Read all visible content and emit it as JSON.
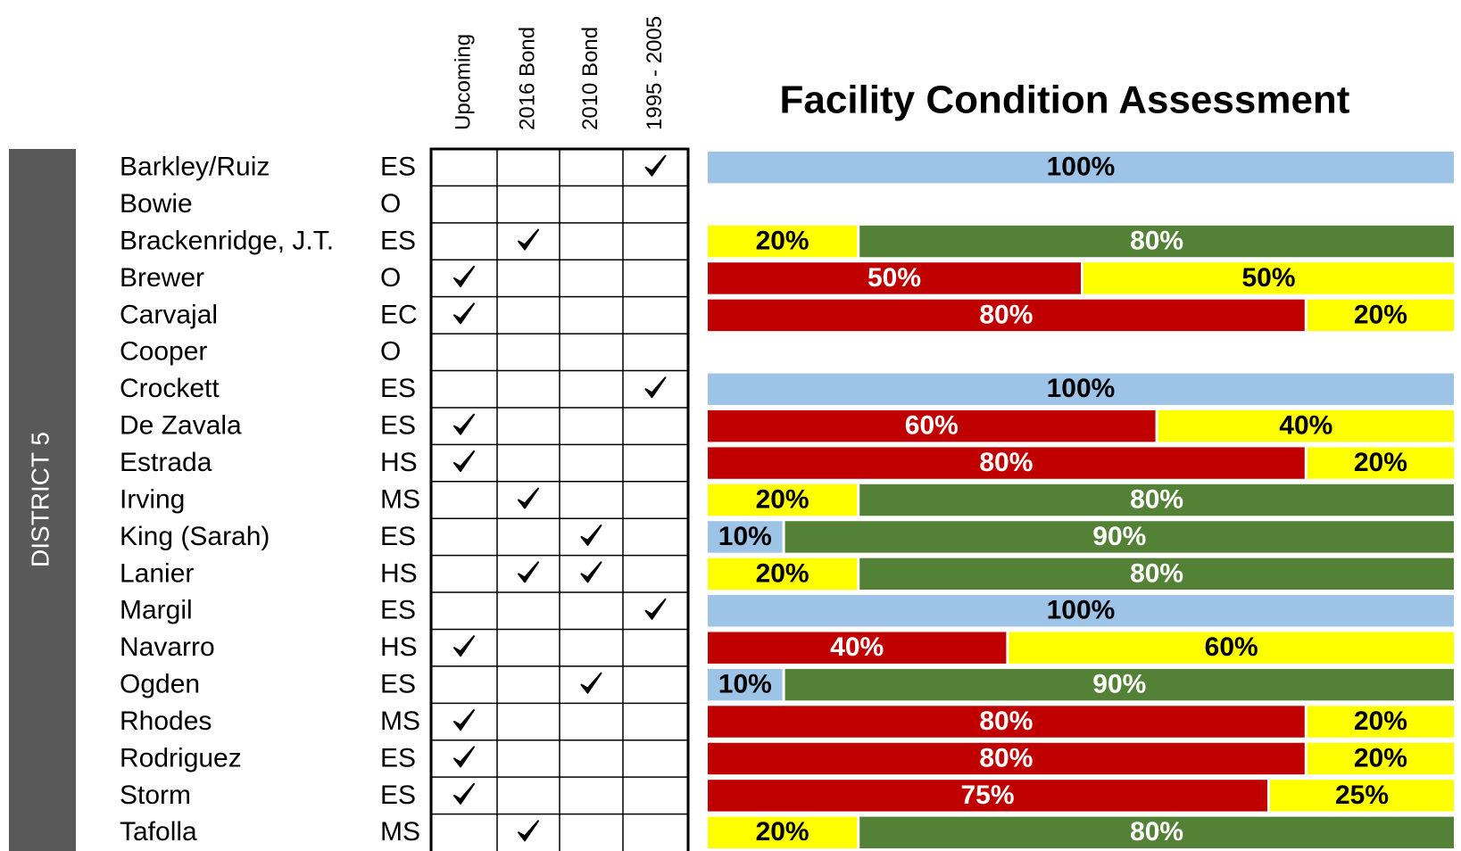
{
  "title": "Facility Condition Assessment",
  "district": "DISTRICT 5",
  "columns": [
    "Upcoming",
    "2016 Bond",
    "2010 Bond",
    "1995 - 2005"
  ],
  "xlim": [
    0,
    100
  ],
  "rows": [
    {
      "name": "Barkley/Ruiz",
      "type": "ES",
      "checks": [
        false,
        false,
        false,
        true
      ],
      "segments": [
        {
          "value": 100,
          "label": "100%",
          "color": "#9dc3e6",
          "label_color": "#000000"
        }
      ]
    },
    {
      "name": "Bowie",
      "type": "O",
      "checks": [
        false,
        false,
        false,
        false
      ],
      "segments": []
    },
    {
      "name": "Brackenridge, J.T.",
      "type": "ES",
      "checks": [
        false,
        true,
        false,
        false
      ],
      "segments": [
        {
          "value": 20,
          "label": "20%",
          "color": "#ffff00",
          "label_color": "#000000"
        },
        {
          "value": 80,
          "label": "80%",
          "color": "#538135",
          "label_color": "#ffffff"
        }
      ]
    },
    {
      "name": "Brewer",
      "type": "O",
      "checks": [
        true,
        false,
        false,
        false
      ],
      "segments": [
        {
          "value": 50,
          "label": "50%",
          "color": "#c00000",
          "label_color": "#ffffff"
        },
        {
          "value": 50,
          "label": "50%",
          "color": "#ffff00",
          "label_color": "#000000"
        }
      ]
    },
    {
      "name": "Carvajal",
      "type": "EC",
      "checks": [
        true,
        false,
        false,
        false
      ],
      "segments": [
        {
          "value": 80,
          "label": "80%",
          "color": "#c00000",
          "label_color": "#ffffff"
        },
        {
          "value": 20,
          "label": "20%",
          "color": "#ffff00",
          "label_color": "#000000"
        }
      ]
    },
    {
      "name": "Cooper",
      "type": "O",
      "checks": [
        false,
        false,
        false,
        false
      ],
      "segments": []
    },
    {
      "name": "Crockett",
      "type": "ES",
      "checks": [
        false,
        false,
        false,
        true
      ],
      "segments": [
        {
          "value": 100,
          "label": "100%",
          "color": "#9dc3e6",
          "label_color": "#000000"
        }
      ]
    },
    {
      "name": "De Zavala",
      "type": "ES",
      "checks": [
        true,
        false,
        false,
        false
      ],
      "segments": [
        {
          "value": 60,
          "label": "60%",
          "color": "#c00000",
          "label_color": "#ffffff"
        },
        {
          "value": 40,
          "label": "40%",
          "color": "#ffff00",
          "label_color": "#000000"
        }
      ]
    },
    {
      "name": "Estrada",
      "type": "HS",
      "checks": [
        true,
        false,
        false,
        false
      ],
      "segments": [
        {
          "value": 80,
          "label": "80%",
          "color": "#c00000",
          "label_color": "#ffffff"
        },
        {
          "value": 20,
          "label": "20%",
          "color": "#ffff00",
          "label_color": "#000000"
        }
      ]
    },
    {
      "name": "Irving",
      "type": "MS",
      "checks": [
        false,
        true,
        false,
        false
      ],
      "segments": [
        {
          "value": 20,
          "label": "20%",
          "color": "#ffff00",
          "label_color": "#000000"
        },
        {
          "value": 80,
          "label": "80%",
          "color": "#538135",
          "label_color": "#ffffff"
        }
      ]
    },
    {
      "name": "King (Sarah)",
      "type": "ES",
      "checks": [
        false,
        false,
        true,
        false
      ],
      "segments": [
        {
          "value": 10,
          "label": "10%",
          "color": "#9dc3e6",
          "label_color": "#000000"
        },
        {
          "value": 90,
          "label": "90%",
          "color": "#538135",
          "label_color": "#ffffff"
        }
      ]
    },
    {
      "name": "Lanier",
      "type": "HS",
      "checks": [
        false,
        true,
        true,
        false
      ],
      "segments": [
        {
          "value": 20,
          "label": "20%",
          "color": "#ffff00",
          "label_color": "#000000"
        },
        {
          "value": 80,
          "label": "80%",
          "color": "#538135",
          "label_color": "#ffffff"
        }
      ]
    },
    {
      "name": "Margil",
      "type": "ES",
      "checks": [
        false,
        false,
        false,
        true
      ],
      "segments": [
        {
          "value": 100,
          "label": "100%",
          "color": "#9dc3e6",
          "label_color": "#000000"
        }
      ]
    },
    {
      "name": "Navarro",
      "type": "HS",
      "checks": [
        true,
        false,
        false,
        false
      ],
      "segments": [
        {
          "value": 40,
          "label": "40%",
          "color": "#c00000",
          "label_color": "#ffffff"
        },
        {
          "value": 60,
          "label": "60%",
          "color": "#ffff00",
          "label_color": "#000000"
        }
      ]
    },
    {
      "name": "Ogden",
      "type": "ES",
      "checks": [
        false,
        false,
        true,
        false
      ],
      "segments": [
        {
          "value": 10,
          "label": "10%",
          "color": "#9dc3e6",
          "label_color": "#000000"
        },
        {
          "value": 90,
          "label": "90%",
          "color": "#538135",
          "label_color": "#ffffff"
        }
      ]
    },
    {
      "name": "Rhodes",
      "type": "MS",
      "checks": [
        true,
        false,
        false,
        false
      ],
      "segments": [
        {
          "value": 80,
          "label": "80%",
          "color": "#c00000",
          "label_color": "#ffffff"
        },
        {
          "value": 20,
          "label": "20%",
          "color": "#ffff00",
          "label_color": "#000000"
        }
      ]
    },
    {
      "name": "Rodriguez",
      "type": "ES",
      "checks": [
        true,
        false,
        false,
        false
      ],
      "segments": [
        {
          "value": 80,
          "label": "80%",
          "color": "#c00000",
          "label_color": "#ffffff"
        },
        {
          "value": 20,
          "label": "20%",
          "color": "#ffff00",
          "label_color": "#000000"
        }
      ]
    },
    {
      "name": "Storm",
      "type": "ES",
      "checks": [
        true,
        false,
        false,
        false
      ],
      "segments": [
        {
          "value": 75,
          "label": "75%",
          "color": "#c00000",
          "label_color": "#ffffff"
        },
        {
          "value": 25,
          "label": "25%",
          "color": "#ffff00",
          "label_color": "#000000"
        }
      ]
    },
    {
      "name": "Tafolla",
      "type": "MS",
      "checks": [
        false,
        true,
        false,
        false
      ],
      "segments": [
        {
          "value": 20,
          "label": "20%",
          "color": "#ffff00",
          "label_color": "#000000"
        },
        {
          "value": 80,
          "label": "80%",
          "color": "#538135",
          "label_color": "#ffffff"
        }
      ]
    }
  ]
}
